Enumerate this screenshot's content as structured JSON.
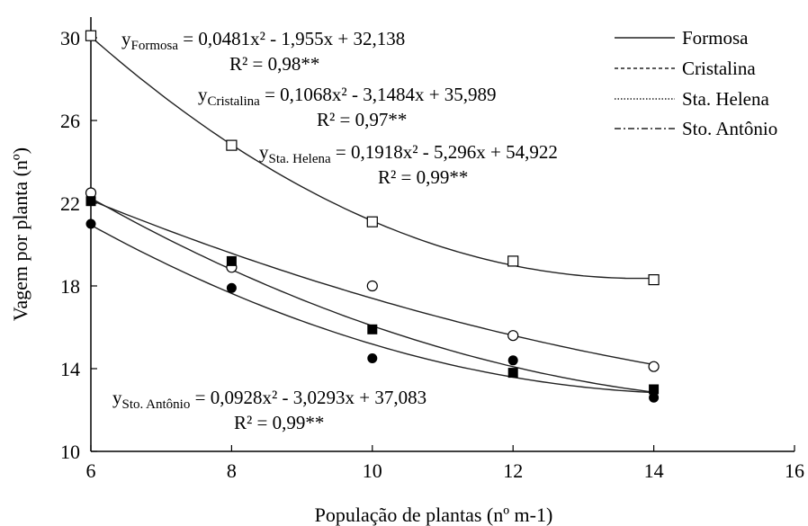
{
  "chart_data": {
    "type": "scatter",
    "xlabel": "População de plantas (nº m-1)",
    "ylabel": "Vagem por planta (nº)",
    "xlim": [
      6,
      16
    ],
    "ylim": [
      10,
      31
    ],
    "xticks": [
      6,
      8,
      10,
      12,
      14,
      16
    ],
    "yticks": [
      10,
      14,
      18,
      22,
      26,
      30
    ],
    "legend_position": "top-right",
    "series": [
      {
        "name": "Formosa",
        "marker": "open-square",
        "dash": "solid",
        "x": [
          6,
          8,
          10,
          12,
          14
        ],
        "y": [
          30.1,
          24.8,
          21.1,
          19.2,
          18.3
        ],
        "fit": [
          0.0481,
          -1.955,
          32.138
        ],
        "equation_prefix": "y",
        "equation_sub": "Formosa",
        "equation_rhs": " = 0,0481x² - 1,955x + 32,138",
        "r2": "R² = 0,98**"
      },
      {
        "name": "Cristalina",
        "marker": "open-circle",
        "dash": "dashed",
        "x": [
          6,
          8,
          10,
          12,
          14
        ],
        "y": [
          22.5,
          18.9,
          18.0,
          15.6,
          14.1
        ],
        "fit": [
          0.1068,
          -3.1484,
          35.989
        ],
        "equation_prefix": "y",
        "equation_sub": "Cristalina",
        "equation_rhs": " = 0,1068x² - 3,1484x + 35,989",
        "r2": "R² = 0,97**"
      },
      {
        "name": "Sta. Helena",
        "marker": "filled-square",
        "dash": "dotted",
        "x": [
          6,
          8,
          10,
          12,
          14
        ],
        "y": [
          22.1,
          19.2,
          15.9,
          13.8,
          13.0
        ],
        "fit": [
          0.1918,
          -5.296,
          54.922
        ],
        "equation_prefix": "y",
        "equation_sub": "Sta. Helena",
        "equation_rhs": " = 0,1918x² - 5,296x + 54,922",
        "r2": "R² = 0,99**"
      },
      {
        "name": "Sto. Antônio",
        "marker": "filled-circle",
        "dash": "dashdot",
        "x": [
          6,
          8,
          10,
          12,
          14
        ],
        "y": [
          21.0,
          17.9,
          14.5,
          14.4,
          12.6
        ],
        "fit": [
          0.0928,
          -3.0293,
          37.083
        ],
        "equation_prefix": "y",
        "equation_sub": "Sto. Antônio",
        "equation_rhs": " = 0,0928x² - 3,0293x + 37,083",
        "r2": "R² = 0,99**"
      }
    ]
  }
}
